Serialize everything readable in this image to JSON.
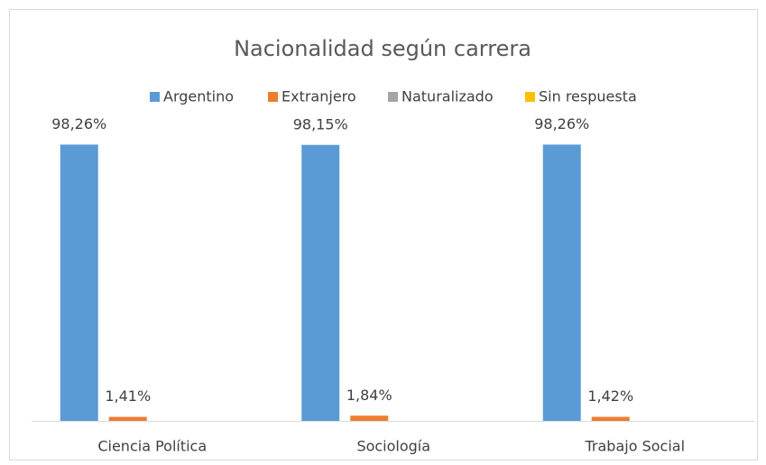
{
  "chart_data": {
    "type": "bar",
    "title": "Nacionalidad según carrera",
    "categories": [
      "Ciencia Política",
      "Sociología",
      "Trabajo Social"
    ],
    "series": [
      {
        "name": "Argentino",
        "color": "#5b9bd5",
        "values": [
          98.26,
          98.15,
          98.26
        ],
        "value_labels": [
          "98,26%",
          "98,15%",
          "98,26%"
        ]
      },
      {
        "name": "Extranjero",
        "color": "#ed7d31",
        "values": [
          1.41,
          1.84,
          1.42
        ],
        "value_labels": [
          "1,41%",
          "1,84%",
          "1,42%"
        ]
      },
      {
        "name": "Naturalizado",
        "color": "#a5a5a5",
        "values": [
          0,
          0,
          0
        ]
      },
      {
        "name": "Sin respuesta",
        "color": "#ffc000",
        "values": [
          0,
          0,
          0
        ]
      }
    ],
    "ylim": [
      0,
      100
    ],
    "legend": "top"
  }
}
